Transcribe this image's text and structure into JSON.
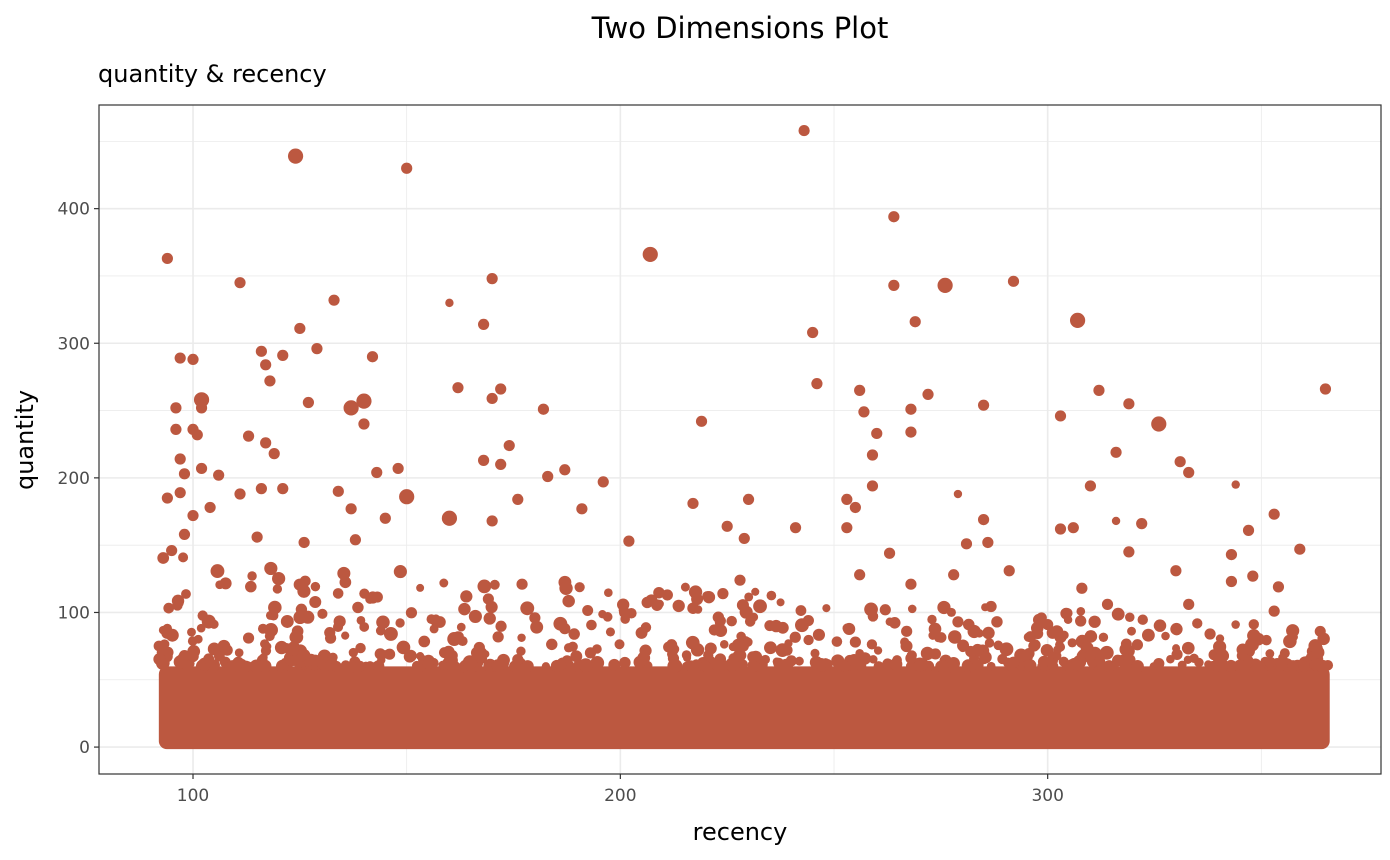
{
  "chart_data": {
    "type": "scatter",
    "title": "Two Dimensions Plot",
    "subtitle": "quantity & recency",
    "xlabel": "recency",
    "ylabel": "quantity",
    "xlim": [
      78,
      378
    ],
    "ylim": [
      -20,
      477
    ],
    "x_ticks": [
      100,
      200,
      300
    ],
    "y_ticks": [
      0,
      100,
      200,
      300,
      400
    ],
    "grid": true,
    "point_color": "#BC5840",
    "panel_background": "#FFFFFF",
    "grid_color": "#EBEBEB",
    "bulk_region": {
      "x_range": [
        92,
        366
      ],
      "y_range": [
        0,
        60
      ]
    },
    "points": [
      [
        243,
        458,
        1
      ],
      [
        124,
        439,
        2
      ],
      [
        150,
        430,
        1
      ],
      [
        264,
        394,
        1
      ],
      [
        207,
        366,
        2
      ],
      [
        94,
        363,
        1
      ],
      [
        170,
        348,
        1
      ],
      [
        111,
        345,
        1
      ],
      [
        276,
        343,
        2
      ],
      [
        264,
        343,
        1
      ],
      [
        292,
        346,
        1
      ],
      [
        133,
        332,
        1
      ],
      [
        160,
        330,
        0
      ],
      [
        307,
        317,
        2
      ],
      [
        269,
        316,
        1
      ],
      [
        168,
        314,
        1
      ],
      [
        125,
        311,
        1
      ],
      [
        245,
        308,
        1
      ],
      [
        129,
        296,
        1
      ],
      [
        116,
        294,
        1
      ],
      [
        97,
        289,
        1
      ],
      [
        100,
        288,
        1
      ],
      [
        121,
        291,
        1
      ],
      [
        142,
        290,
        1
      ],
      [
        117,
        284,
        1
      ],
      [
        118,
        272,
        1
      ],
      [
        246,
        270,
        1
      ],
      [
        162,
        267,
        1
      ],
      [
        172,
        266,
        1
      ],
      [
        256,
        265,
        1
      ],
      [
        312,
        265,
        1
      ],
      [
        365,
        266,
        1
      ],
      [
        272,
        262,
        1
      ],
      [
        102,
        258,
        2
      ],
      [
        140,
        257,
        2
      ],
      [
        170,
        259,
        1
      ],
      [
        127,
        256,
        1
      ],
      [
        102,
        252,
        1
      ],
      [
        96,
        252,
        1
      ],
      [
        137,
        252,
        2
      ],
      [
        182,
        251,
        1
      ],
      [
        285,
        254,
        1
      ],
      [
        319,
        255,
        1
      ],
      [
        268,
        251,
        1
      ],
      [
        257,
        249,
        1
      ],
      [
        303,
        246,
        1
      ],
      [
        219,
        242,
        1
      ],
      [
        140,
        240,
        1
      ],
      [
        326,
        240,
        2
      ],
      [
        96,
        236,
        1
      ],
      [
        100,
        236,
        1
      ],
      [
        101,
        232,
        1
      ],
      [
        113,
        231,
        1
      ],
      [
        268,
        234,
        1
      ],
      [
        260,
        233,
        1
      ],
      [
        117,
        226,
        1
      ],
      [
        174,
        224,
        1
      ],
      [
        316,
        219,
        1
      ],
      [
        119,
        218,
        1
      ],
      [
        259,
        217,
        1
      ],
      [
        97,
        214,
        1
      ],
      [
        168,
        213,
        1
      ],
      [
        172,
        210,
        1
      ],
      [
        331,
        212,
        1
      ],
      [
        148,
        207,
        1
      ],
      [
        102,
        207,
        1
      ],
      [
        143,
        204,
        1
      ],
      [
        98,
        203,
        1
      ],
      [
        106,
        202,
        1
      ],
      [
        187,
        206,
        1
      ],
      [
        333,
        204,
        1
      ],
      [
        183,
        201,
        1
      ],
      [
        196,
        197,
        1
      ],
      [
        259,
        194,
        1
      ],
      [
        310,
        194,
        1
      ],
      [
        344,
        195,
        0
      ],
      [
        116,
        192,
        1
      ],
      [
        134,
        190,
        1
      ],
      [
        121,
        192,
        1
      ],
      [
        97,
        189,
        1
      ],
      [
        111,
        188,
        1
      ],
      [
        150,
        186,
        2
      ],
      [
        176,
        184,
        1
      ],
      [
        230,
        184,
        1
      ],
      [
        253,
        184,
        1
      ],
      [
        279,
        188,
        0
      ],
      [
        94,
        185,
        1
      ],
      [
        217,
        181,
        1
      ],
      [
        104,
        178,
        1
      ],
      [
        255,
        178,
        1
      ],
      [
        137,
        177,
        1
      ],
      [
        191,
        177,
        1
      ],
      [
        353,
        173,
        1
      ],
      [
        100,
        172,
        1
      ],
      [
        145,
        170,
        1
      ],
      [
        160,
        170,
        2
      ],
      [
        170,
        168,
        1
      ],
      [
        285,
        169,
        1
      ],
      [
        316,
        168,
        0
      ],
      [
        303,
        162,
        1
      ],
      [
        306,
        163,
        1
      ],
      [
        225,
        164,
        1
      ],
      [
        241,
        163,
        1
      ],
      [
        253,
        163,
        1
      ],
      [
        281,
        151,
        1
      ],
      [
        286,
        152,
        1
      ],
      [
        347,
        161,
        1
      ],
      [
        322,
        166,
        1
      ],
      [
        229,
        155,
        1
      ],
      [
        202,
        153,
        1
      ],
      [
        138,
        154,
        1
      ],
      [
        126,
        152,
        1
      ],
      [
        115,
        156,
        1
      ],
      [
        98,
        158,
        1
      ],
      [
        359,
        147,
        1
      ],
      [
        343,
        143,
        1
      ],
      [
        263,
        144,
        1
      ],
      [
        95,
        146,
        1
      ],
      [
        319,
        145,
        1
      ],
      [
        330,
        131,
        1
      ],
      [
        291,
        131,
        1
      ],
      [
        348,
        127,
        1
      ],
      [
        278,
        128,
        1
      ],
      [
        343,
        123,
        1
      ],
      [
        256,
        128,
        1
      ],
      [
        308,
        118,
        1
      ],
      [
        354,
        119,
        1
      ],
      [
        211,
        113,
        1
      ],
      [
        228,
        124,
        1
      ],
      [
        268,
        121,
        1
      ],
      [
        177,
        121,
        1
      ],
      [
        224,
        114,
        1
      ],
      [
        333,
        106,
        1
      ],
      [
        201,
        100,
        1
      ],
      [
        314,
        106,
        1
      ],
      [
        262,
        102,
        1
      ],
      [
        353,
        101,
        1
      ],
      [
        180,
        96,
        1
      ],
      [
        279,
        93,
        1
      ],
      [
        244,
        94,
        1
      ],
      [
        300,
        91,
        1
      ],
      [
        157,
        93,
        1
      ],
      [
        338,
        84,
        1
      ],
      [
        222,
        87,
        1
      ],
      [
        187,
        88,
        1
      ],
      [
        267,
        86,
        1
      ],
      [
        132,
        85,
        1
      ],
      [
        349,
        80,
        1
      ],
      [
        296,
        82,
        1
      ],
      [
        113,
        81,
        1
      ],
      [
        255,
        78,
        1
      ],
      [
        212,
        76,
        1
      ],
      [
        321,
        76,
        1
      ],
      [
        167,
        74,
        1
      ],
      [
        239,
        72,
        1
      ],
      [
        108,
        72,
        1
      ],
      [
        282,
        71,
        1
      ],
      [
        363,
        70,
        1
      ],
      [
        193,
        70,
        1
      ],
      [
        146,
        69,
        1
      ],
      [
        310,
        68,
        1
      ],
      [
        98,
        68,
        1
      ],
      [
        231,
        67,
        1
      ],
      [
        268,
        66,
        1
      ],
      [
        340,
        65,
        1
      ],
      [
        176,
        65,
        1
      ],
      [
        123,
        64,
        1
      ],
      [
        205,
        64,
        1
      ],
      [
        292,
        63,
        1
      ],
      [
        352,
        63,
        1
      ],
      [
        155,
        62,
        1
      ],
      [
        247,
        62,
        1
      ],
      [
        326,
        62,
        1
      ],
      [
        105,
        61,
        1
      ],
      [
        139,
        60,
        1
      ],
      [
        186,
        61,
        1
      ],
      [
        220,
        60,
        1
      ],
      [
        275,
        60,
        1
      ],
      [
        305,
        60,
        1
      ],
      [
        360,
        60,
        1
      ]
    ]
  }
}
